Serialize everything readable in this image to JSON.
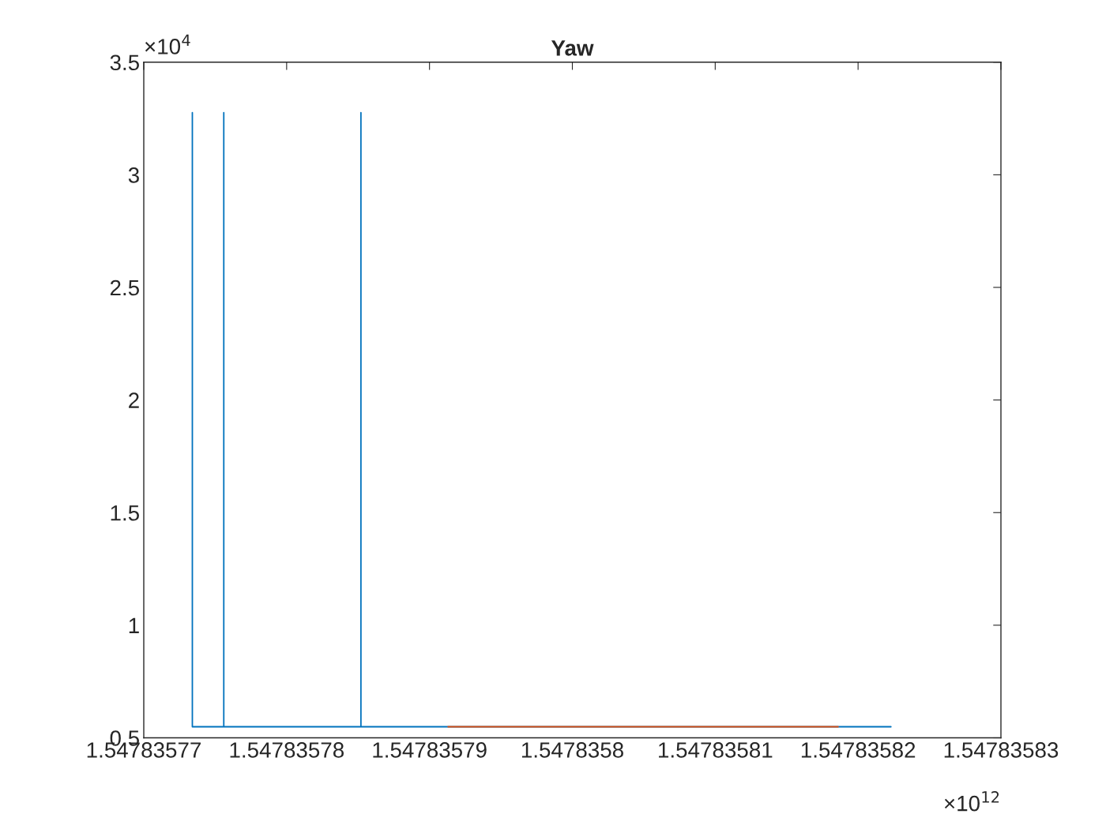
{
  "chart_data": {
    "type": "line",
    "title": "Yaw",
    "series": [
      {
        "color": "#0072bd",
        "x": [
          1.5478357734,
          1.5478357734,
          1.5478357756,
          1.5478357756,
          1.5478357756,
          1.5478357852,
          1.5478357852,
          1.5478357852,
          1.5478358223
        ],
        "values": [
          3.276,
          0.549,
          0.549,
          3.276,
          0.549,
          0.549,
          3.276,
          0.549,
          0.549
        ]
      },
      {
        "color": "#d95319",
        "x": [
          1.5478357913,
          1.5478358186
        ],
        "values": [
          0.549,
          0.549
        ]
      }
    ],
    "xlim": [
      1.54783577,
      1.54783583
    ],
    "xticks": [
      1.54783577,
      1.54783578,
      1.54783579,
      1.5478358,
      1.54783581,
      1.54783582,
      1.54783583
    ],
    "ylim": [
      0.5,
      3.5
    ],
    "yticks": [
      0.5,
      1,
      1.5,
      2,
      2.5,
      3,
      3.5
    ],
    "annotations": [
      "×10$^{4}$",
      "×10$^{12}$"
    ],
    "grid": false,
    "legend": false,
    "line_style": "solid",
    "marker": "none"
  }
}
